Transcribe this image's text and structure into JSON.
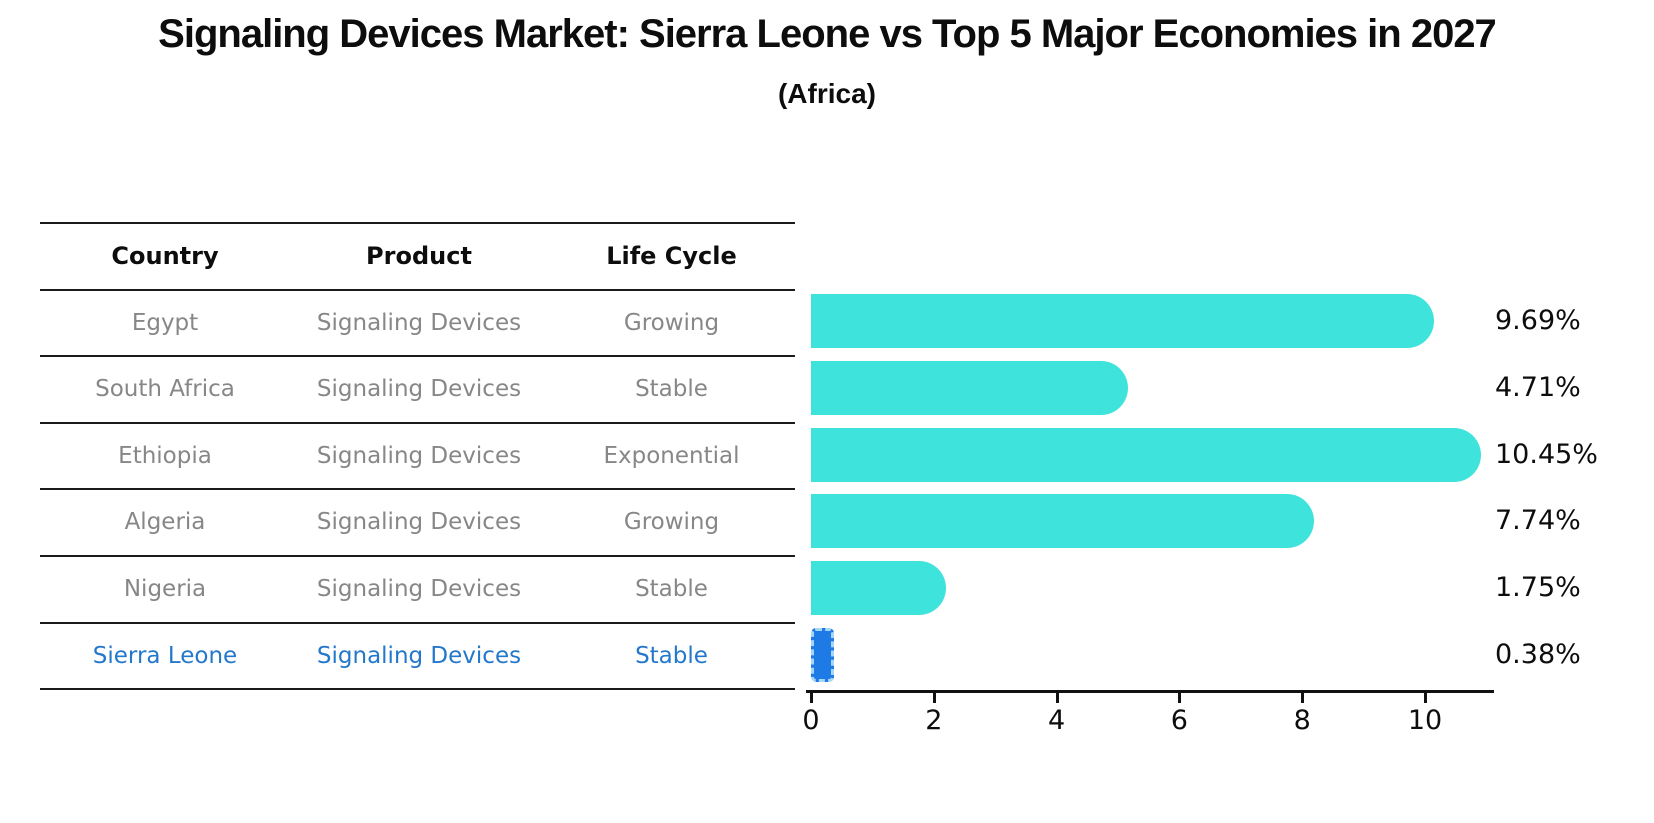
{
  "title": "Signaling Devices Market: Sierra Leone vs Top 5 Major Economies in 2027",
  "subtitle": "(Africa)",
  "table": {
    "headers": [
      "Country",
      "Product",
      "Life Cycle"
    ],
    "rows": [
      {
        "country": "Egypt",
        "product": "Signaling Devices",
        "life_cycle": "Growing",
        "highlighted": false
      },
      {
        "country": "South Africa",
        "product": "Signaling Devices",
        "life_cycle": "Stable",
        "highlighted": false
      },
      {
        "country": "Ethiopia",
        "product": "Signaling Devices",
        "life_cycle": "Exponential",
        "highlighted": false
      },
      {
        "country": "Algeria",
        "product": "Signaling Devices",
        "life_cycle": "Growing",
        "highlighted": false
      },
      {
        "country": "Nigeria",
        "product": "Signaling Devices",
        "life_cycle": "Stable",
        "highlighted": false
      },
      {
        "country": "Sierra Leone",
        "product": "Signaling Devices",
        "life_cycle": "Stable",
        "highlighted": true
      }
    ]
  },
  "chart_data": {
    "type": "bar",
    "orientation": "horizontal",
    "title": "Signaling Devices Market: Sierra Leone vs Top 5 Major Economies in 2027",
    "subtitle": "(Africa)",
    "categories": [
      "Egypt",
      "South Africa",
      "Ethiopia",
      "Algeria",
      "Nigeria",
      "Sierra Leone"
    ],
    "values": [
      9.69,
      4.71,
      10.45,
      7.74,
      1.75,
      0.38
    ],
    "value_labels": [
      "9.69%",
      "4.71%",
      "10.45%",
      "7.74%",
      "1.75%",
      "0.38%"
    ],
    "x_ticks": [
      0,
      2,
      4,
      6,
      8,
      10
    ],
    "xlim": [
      0,
      11.1
    ],
    "grid": false,
    "legend": "none",
    "highlight_index": 5
  },
  "colors": {
    "bar": "#3EE4DC",
    "highlight_bar": "#1E7AE5",
    "highlight_bar_dash": "#A5D6F7",
    "highlight_text": "#2478CB",
    "table_text": "#878787",
    "header_text": "#0d0d0d",
    "axis": "#111111",
    "background": "#ffffff"
  }
}
